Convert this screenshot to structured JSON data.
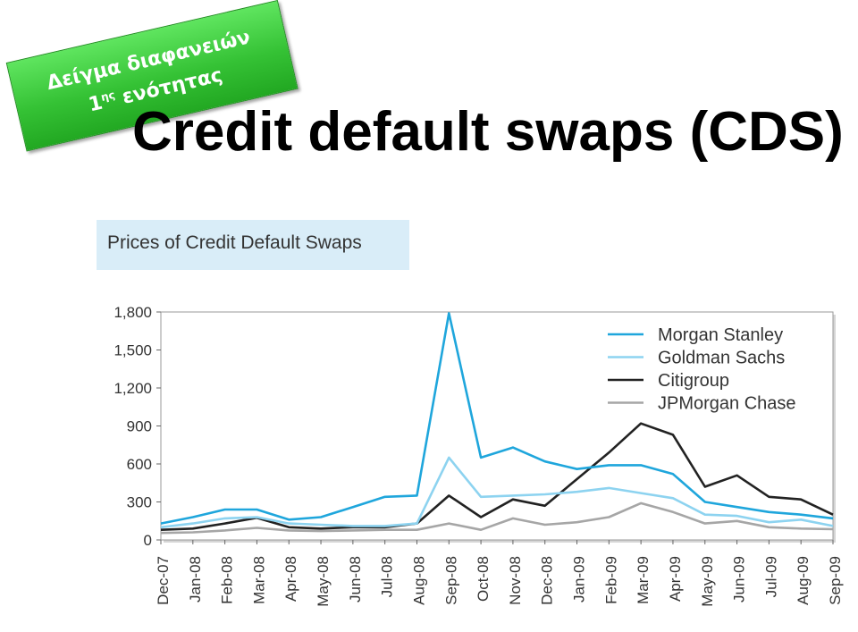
{
  "badge": {
    "line1": "Δείγμα διαφανειών",
    "line2_num": "1",
    "line2_sup": "ης",
    "line2_rest": " ενότητας"
  },
  "page_title": "Credit default swaps (CDS)",
  "chart_data": {
    "type": "line",
    "title": "Prices of Credit Default Swaps",
    "xlabel": "",
    "ylabel": "",
    "ylim": [
      0,
      1800
    ],
    "yticks": [
      0,
      300,
      600,
      900,
      1200,
      1500,
      1800
    ],
    "ytick_labels": [
      "0",
      "300",
      "600",
      "900",
      "1,200",
      "1,500",
      "1,800"
    ],
    "grid": false,
    "legend": "top-right",
    "categories": [
      "Dec-07",
      "Jan-08",
      "Feb-08",
      "Mar-08",
      "Apr-08",
      "May-08",
      "Jun-08",
      "Jul-08",
      "Aug-08",
      "Sep-08",
      "Oct-08",
      "Nov-08",
      "Dec-08",
      "Jan-09",
      "Feb-09",
      "Mar-09",
      "Apr-09",
      "May-09",
      "Jun-09",
      "Jul-09",
      "Aug-09",
      "Sep-09"
    ],
    "series": [
      {
        "name": "Morgan Stanley",
        "color": "#1fa6dc",
        "values": [
          130,
          180,
          240,
          240,
          160,
          180,
          260,
          340,
          350,
          1790,
          650,
          730,
          620,
          560,
          590,
          590,
          520,
          300,
          260,
          220,
          200,
          170
        ]
      },
      {
        "name": "Goldman Sachs",
        "color": "#8dd3f0",
        "values": [
          100,
          130,
          170,
          180,
          130,
          120,
          110,
          110,
          130,
          650,
          340,
          350,
          360,
          380,
          410,
          370,
          330,
          200,
          190,
          140,
          160,
          110
        ]
      },
      {
        "name": "Citigroup",
        "color": "#222222",
        "values": [
          80,
          90,
          130,
          175,
          100,
          90,
          100,
          100,
          130,
          350,
          180,
          320,
          270,
          480,
          690,
          920,
          830,
          420,
          510,
          340,
          320,
          200
        ]
      },
      {
        "name": "JPMorgan Chase",
        "color": "#a6a6a6",
        "values": [
          55,
          60,
          75,
          95,
          75,
          70,
          75,
          80,
          80,
          130,
          80,
          170,
          120,
          140,
          180,
          290,
          220,
          130,
          150,
          100,
          90,
          85
        ]
      }
    ]
  }
}
